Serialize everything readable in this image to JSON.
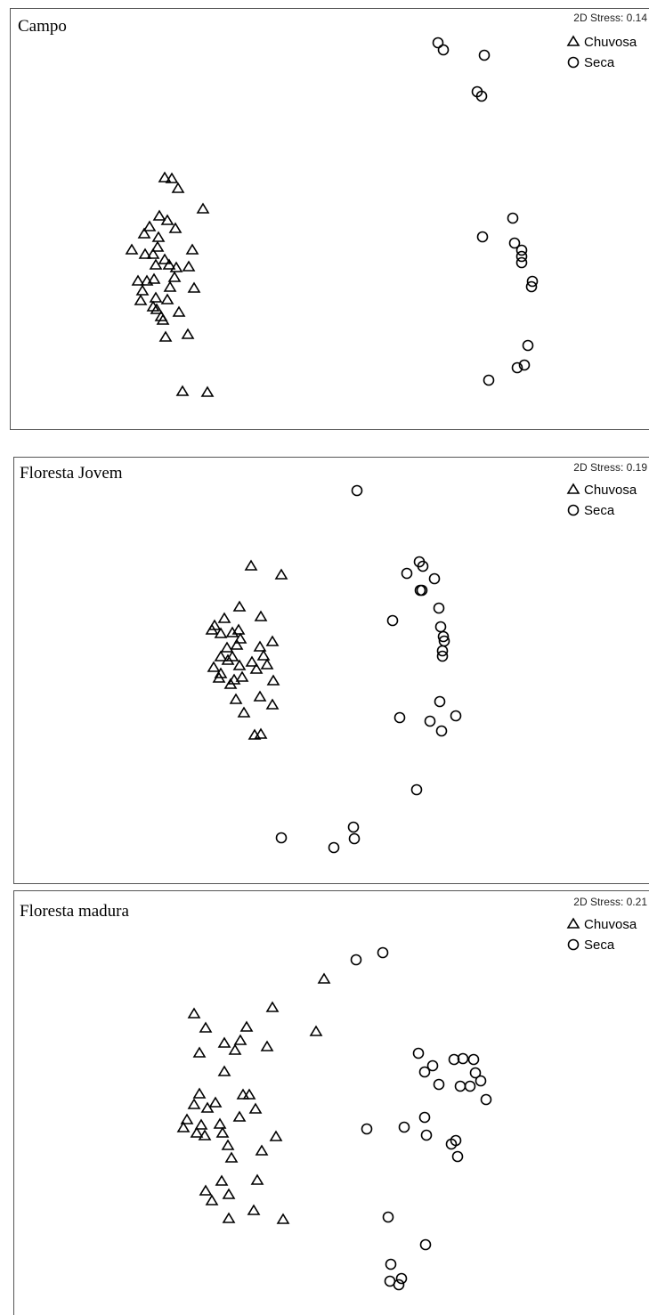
{
  "chart_data": [
    {
      "type": "scatter",
      "title": "Campo",
      "stress_label": "2D Stress: 0.14",
      "legend_position": "top-right",
      "series": [
        {
          "name": "Chuvosa",
          "marker": "triangle",
          "points": [
            [
              185,
              199
            ],
            [
              193,
              200
            ],
            [
              200,
              211
            ],
            [
              228,
              234
            ],
            [
              179,
              242
            ],
            [
              188,
              247
            ],
            [
              168,
              254
            ],
            [
              197,
              256
            ],
            [
              162,
              262
            ],
            [
              178,
              266
            ],
            [
              216,
              280
            ],
            [
              148,
              280
            ],
            [
              163,
              285
            ],
            [
              177,
              277
            ],
            [
              172,
              285
            ],
            [
              185,
              291
            ],
            [
              198,
              300
            ],
            [
              212,
              299
            ],
            [
              175,
              297
            ],
            [
              190,
              297
            ],
            [
              196,
              311
            ],
            [
              155,
              315
            ],
            [
              165,
              315
            ],
            [
              173,
              313
            ],
            [
              191,
              322
            ],
            [
              218,
              323
            ],
            [
              160,
              326
            ],
            [
              175,
              334
            ],
            [
              188,
              336
            ],
            [
              158,
              337
            ],
            [
              172,
              344
            ],
            [
              176,
              347
            ],
            [
              201,
              350
            ],
            [
              181,
              355
            ],
            [
              183,
              359
            ],
            [
              186,
              378
            ],
            [
              211,
              375
            ],
            [
              205,
              439
            ],
            [
              233,
              440
            ]
          ]
        },
        {
          "name": "Seca",
          "marker": "circle",
          "points": [
            [
              492,
              48
            ],
            [
              498,
              56
            ],
            [
              544,
              62
            ],
            [
              536,
              103
            ],
            [
              541,
              108
            ],
            [
              576,
              245
            ],
            [
              542,
              266
            ],
            [
              578,
              273
            ],
            [
              586,
              281
            ],
            [
              586,
              288
            ],
            [
              586,
              295
            ],
            [
              598,
              316
            ],
            [
              597,
              322
            ],
            [
              593,
              388
            ],
            [
              589,
              410
            ],
            [
              581,
              413
            ],
            [
              549,
              427
            ]
          ]
        }
      ]
    },
    {
      "type": "scatter",
      "title": "Floresta Jovem",
      "stress_label": "2D Stress: 0.19",
      "legend_position": "top-right",
      "series": [
        {
          "name": "Chuvosa",
          "marker": "triangle",
          "points": [
            [
              282,
              635
            ],
            [
              316,
              645
            ],
            [
              269,
              681
            ],
            [
              293,
              692
            ],
            [
              252,
              694
            ],
            [
              241,
              702
            ],
            [
              268,
              707
            ],
            [
              248,
              711
            ],
            [
              261,
              710
            ],
            [
              306,
              720
            ],
            [
              270,
              717
            ],
            [
              238,
              707
            ],
            [
              292,
              726
            ],
            [
              255,
              727
            ],
            [
              266,
              724
            ],
            [
              248,
              737
            ],
            [
              296,
              736
            ],
            [
              261,
              737
            ],
            [
              256,
              741
            ],
            [
              283,
              743
            ],
            [
              240,
              749
            ],
            [
              300,
              746
            ],
            [
              269,
              747
            ],
            [
              248,
              756
            ],
            [
              288,
              751
            ],
            [
              272,
              760
            ],
            [
              263,
              763
            ],
            [
              246,
              761
            ],
            [
              307,
              764
            ],
            [
              259,
              768
            ],
            [
              265,
              785
            ],
            [
              292,
              782
            ],
            [
              306,
              791
            ],
            [
              274,
              800
            ],
            [
              286,
              825
            ],
            [
              293,
              824
            ]
          ]
        },
        {
          "name": "Seca",
          "marker": "circle",
          "points": [
            [
              401,
              551
            ],
            [
              471,
              631
            ],
            [
              475,
              636
            ],
            [
              457,
              644
            ],
            [
              488,
              650
            ],
            [
              472,
              663
            ],
            [
              474,
              663
            ],
            [
              493,
              683
            ],
            [
              441,
              697
            ],
            [
              495,
              704
            ],
            [
              498,
              715
            ],
            [
              499,
              720
            ],
            [
              497,
              731
            ],
            [
              497,
              737
            ],
            [
              494,
              788
            ],
            [
              449,
              806
            ],
            [
              483,
              810
            ],
            [
              512,
              804
            ],
            [
              496,
              821
            ],
            [
              468,
              887
            ],
            [
              397,
              929
            ],
            [
              398,
              942
            ],
            [
              316,
              941
            ],
            [
              375,
              952
            ]
          ]
        }
      ]
    },
    {
      "type": "scatter",
      "title": "Floresta madura",
      "stress_label": "2D Stress: 0.21",
      "legend_position": "top-right",
      "series": [
        {
          "name": "Chuvosa",
          "marker": "triangle",
          "points": [
            [
              364,
              1099
            ],
            [
              306,
              1131
            ],
            [
              218,
              1138
            ],
            [
              355,
              1158
            ],
            [
              231,
              1154
            ],
            [
              277,
              1153
            ],
            [
              270,
              1168
            ],
            [
              252,
              1171
            ],
            [
              300,
              1175
            ],
            [
              264,
              1179
            ],
            [
              224,
              1182
            ],
            [
              252,
              1203
            ],
            [
              273,
              1229
            ],
            [
              280,
              1229
            ],
            [
              224,
              1228
            ],
            [
              287,
              1245
            ],
            [
              218,
              1240
            ],
            [
              242,
              1238
            ],
            [
              233,
              1244
            ],
            [
              269,
              1254
            ],
            [
              210,
              1257
            ],
            [
              226,
              1263
            ],
            [
              247,
              1262
            ],
            [
              206,
              1266
            ],
            [
              221,
              1272
            ],
            [
              230,
              1275
            ],
            [
              250,
              1272
            ],
            [
              310,
              1276
            ],
            [
              256,
              1286
            ],
            [
              294,
              1292
            ],
            [
              260,
              1300
            ],
            [
              249,
              1326
            ],
            [
              289,
              1325
            ],
            [
              231,
              1337
            ],
            [
              257,
              1341
            ],
            [
              238,
              1348
            ],
            [
              285,
              1359
            ],
            [
              257,
              1368
            ],
            [
              318,
              1369
            ]
          ]
        },
        {
          "name": "Seca",
          "marker": "circle",
          "points": [
            [
              430,
              1070
            ],
            [
              400,
              1078
            ],
            [
              470,
              1183
            ],
            [
              510,
              1190
            ],
            [
              520,
              1189
            ],
            [
              532,
              1190
            ],
            [
              486,
              1197
            ],
            [
              477,
              1204
            ],
            [
              534,
              1205
            ],
            [
              540,
              1214
            ],
            [
              493,
              1218
            ],
            [
              517,
              1220
            ],
            [
              528,
              1220
            ],
            [
              546,
              1235
            ],
            [
              477,
              1255
            ],
            [
              412,
              1268
            ],
            [
              454,
              1266
            ],
            [
              479,
              1275
            ],
            [
              512,
              1281
            ],
            [
              507,
              1285
            ],
            [
              514,
              1299
            ],
            [
              436,
              1367
            ],
            [
              478,
              1398
            ],
            [
              439,
              1420
            ],
            [
              451,
              1436
            ],
            [
              438,
              1439
            ],
            [
              448,
              1443
            ]
          ]
        }
      ]
    }
  ]
}
